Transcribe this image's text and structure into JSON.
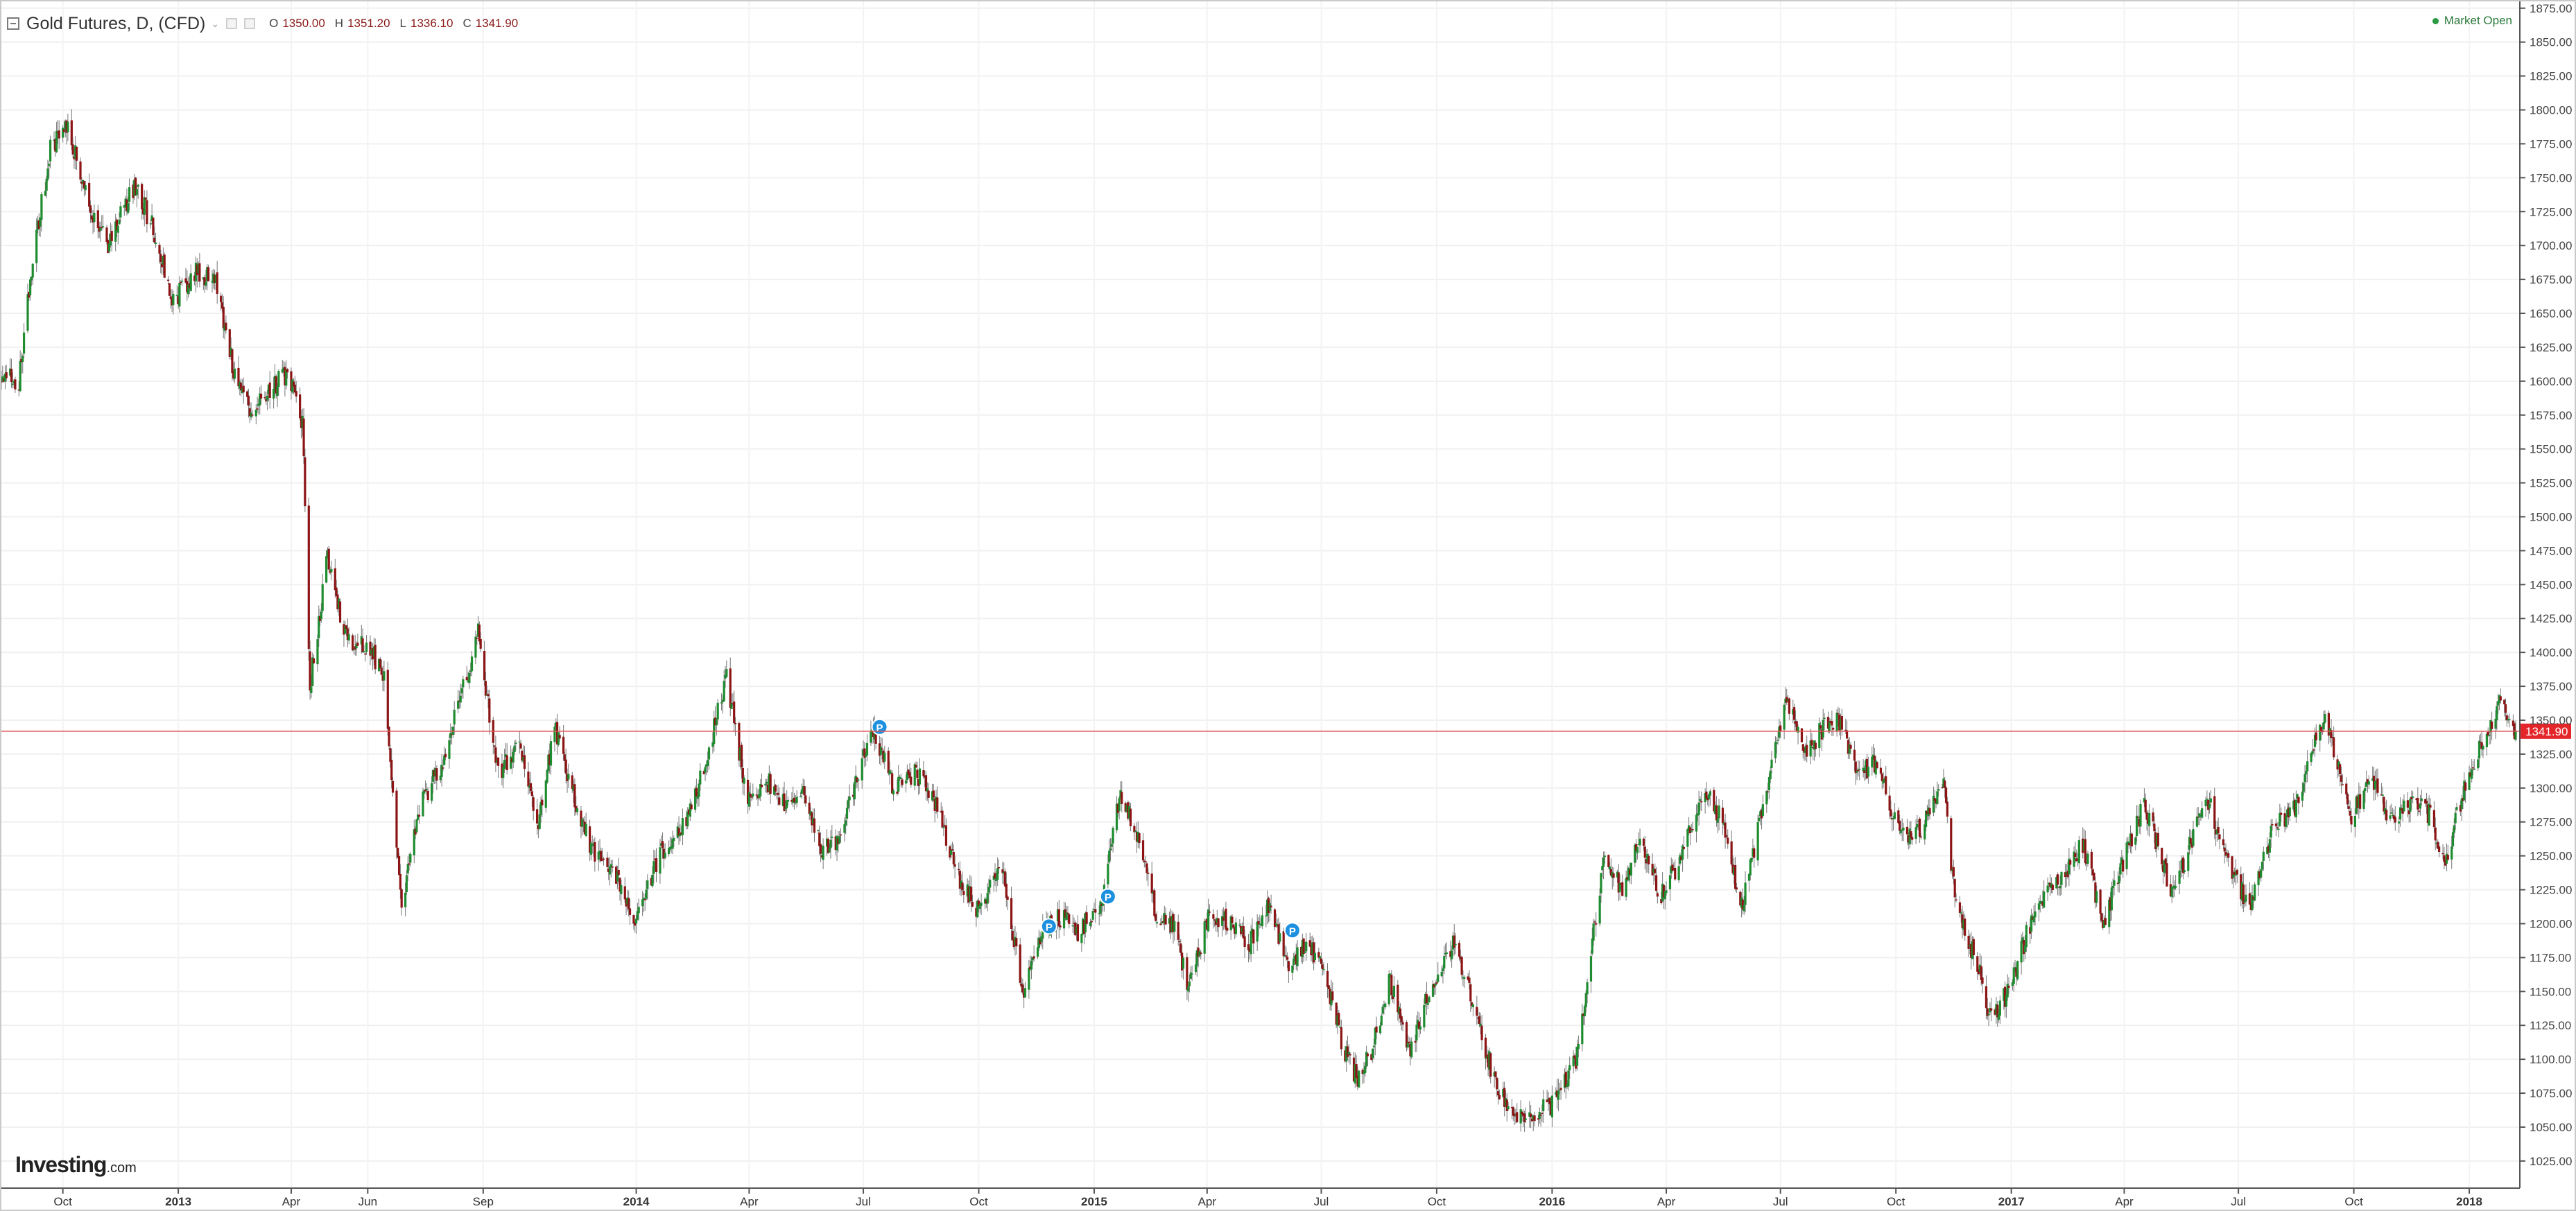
{
  "header": {
    "symbol": "Gold Futures, D, (CFD)",
    "caret": "⌄",
    "ohlc": {
      "o_label": "O",
      "o_value": "1350.00",
      "h_label": "H",
      "h_value": "1351.20",
      "l_label": "L",
      "l_value": "1336.10",
      "c_label": "C",
      "c_value": "1341.90"
    }
  },
  "status": {
    "text": "Market Open",
    "color": "#2a9a44"
  },
  "logo": {
    "name": "Investing",
    "suffix": ".com"
  },
  "colors": {
    "up": "#1e8c2f",
    "down": "#8c1414",
    "price_line": "#e05555",
    "price_label_bg": "#e4262a"
  },
  "chart_data": {
    "type": "candlestick",
    "title": "Gold Futures, D, (CFD)",
    "y_axis": {
      "range": [
        1005,
        1880
      ],
      "ticks": [
        "1025.00",
        "1050.00",
        "1075.00",
        "1100.00",
        "1125.00",
        "1150.00",
        "1175.00",
        "1200.00",
        "1225.00",
        "1250.00",
        "1275.00",
        "1300.00",
        "1325.00",
        "1350.00",
        "1375.00",
        "1400.00",
        "1425.00",
        "1450.00",
        "1475.00",
        "1500.00",
        "1525.00",
        "1550.00",
        "1575.00",
        "1600.00",
        "1625.00",
        "1650.00",
        "1675.00",
        "1700.00",
        "1725.00",
        "1750.00",
        "1775.00",
        "1800.00",
        "1825.00",
        "1850.00",
        "1875.00"
      ]
    },
    "x_axis": {
      "range": [
        "2012-08-13",
        "2018-02-07"
      ],
      "labels": [
        {
          "text": "Oct",
          "date": "2012-10-01",
          "bold": false
        },
        {
          "text": "2013",
          "date": "2013-01-01",
          "bold": true
        },
        {
          "text": "Apr",
          "date": "2013-04-01",
          "bold": false
        },
        {
          "text": "Jun",
          "date": "2013-06-01",
          "bold": false
        },
        {
          "text": "Sep",
          "date": "2013-09-01",
          "bold": false
        },
        {
          "text": "2014",
          "date": "2014-01-01",
          "bold": true
        },
        {
          "text": "Apr",
          "date": "2014-04-01",
          "bold": false
        },
        {
          "text": "Jul",
          "date": "2014-07-01",
          "bold": false
        },
        {
          "text": "Oct",
          "date": "2014-10-01",
          "bold": false
        },
        {
          "text": "2015",
          "date": "2015-01-01",
          "bold": true
        },
        {
          "text": "Apr",
          "date": "2015-04-01",
          "bold": false
        },
        {
          "text": "Jul",
          "date": "2015-07-01",
          "bold": false
        },
        {
          "text": "Oct",
          "date": "2015-10-01",
          "bold": false
        },
        {
          "text": "2016",
          "date": "2016-01-01",
          "bold": true
        },
        {
          "text": "Apr",
          "date": "2016-04-01",
          "bold": false
        },
        {
          "text": "Jul",
          "date": "2016-07-01",
          "bold": false
        },
        {
          "text": "Oct",
          "date": "2016-10-01",
          "bold": false
        },
        {
          "text": "2017",
          "date": "2017-01-01",
          "bold": true
        },
        {
          "text": "Apr",
          "date": "2017-04-01",
          "bold": false
        },
        {
          "text": "Jul",
          "date": "2017-07-01",
          "bold": false
        },
        {
          "text": "Oct",
          "date": "2017-10-01",
          "bold": false
        },
        {
          "text": "2018",
          "date": "2018-01-01",
          "bold": true
        }
      ]
    },
    "grid": true,
    "last_price": {
      "value": 1341.9,
      "label": "1341.90"
    },
    "path": [
      {
        "date": "2012-08-13",
        "price": 1605
      },
      {
        "date": "2012-08-27",
        "price": 1600
      },
      {
        "date": "2012-09-07",
        "price": 1690
      },
      {
        "date": "2012-09-21",
        "price": 1770
      },
      {
        "date": "2012-10-04",
        "price": 1790
      },
      {
        "date": "2012-10-22",
        "price": 1730
      },
      {
        "date": "2012-11-05",
        "price": 1700
      },
      {
        "date": "2012-11-28",
        "price": 1745
      },
      {
        "date": "2012-12-12",
        "price": 1712
      },
      {
        "date": "2012-12-28",
        "price": 1660
      },
      {
        "date": "2013-01-15",
        "price": 1680
      },
      {
        "date": "2013-01-30",
        "price": 1675
      },
      {
        "date": "2013-02-15",
        "price": 1605
      },
      {
        "date": "2013-02-28",
        "price": 1575
      },
      {
        "date": "2013-03-15",
        "price": 1595
      },
      {
        "date": "2013-03-29",
        "price": 1605
      },
      {
        "date": "2013-04-10",
        "price": 1570
      },
      {
        "date": "2013-04-16",
        "price": 1375
      },
      {
        "date": "2013-04-30",
        "price": 1470
      },
      {
        "date": "2013-05-15",
        "price": 1410
      },
      {
        "date": "2013-05-31",
        "price": 1405
      },
      {
        "date": "2013-06-14",
        "price": 1385
      },
      {
        "date": "2013-06-28",
        "price": 1215
      },
      {
        "date": "2013-07-12",
        "price": 1285
      },
      {
        "date": "2013-07-31",
        "price": 1320
      },
      {
        "date": "2013-08-15",
        "price": 1370
      },
      {
        "date": "2013-08-28",
        "price": 1415
      },
      {
        "date": "2013-09-13",
        "price": 1310
      },
      {
        "date": "2013-09-30",
        "price": 1330
      },
      {
        "date": "2013-10-15",
        "price": 1275
      },
      {
        "date": "2013-10-28",
        "price": 1345
      },
      {
        "date": "2013-11-15",
        "price": 1285
      },
      {
        "date": "2013-11-29",
        "price": 1250
      },
      {
        "date": "2013-12-16",
        "price": 1235
      },
      {
        "date": "2013-12-31",
        "price": 1200
      },
      {
        "date": "2014-01-20",
        "price": 1252
      },
      {
        "date": "2014-02-10",
        "price": 1275
      },
      {
        "date": "2014-02-28",
        "price": 1328
      },
      {
        "date": "2014-03-14",
        "price": 1382
      },
      {
        "date": "2014-03-31",
        "price": 1290
      },
      {
        "date": "2014-04-15",
        "price": 1305
      },
      {
        "date": "2014-04-30",
        "price": 1290
      },
      {
        "date": "2014-05-15",
        "price": 1295
      },
      {
        "date": "2014-05-30",
        "price": 1252
      },
      {
        "date": "2014-06-12",
        "price": 1265
      },
      {
        "date": "2014-06-30",
        "price": 1322
      },
      {
        "date": "2014-07-10",
        "price": 1340
      },
      {
        "date": "2014-07-25",
        "price": 1300
      },
      {
        "date": "2014-08-12",
        "price": 1312
      },
      {
        "date": "2014-08-29",
        "price": 1285
      },
      {
        "date": "2014-09-15",
        "price": 1235
      },
      {
        "date": "2014-09-30",
        "price": 1210
      },
      {
        "date": "2014-10-20",
        "price": 1245
      },
      {
        "date": "2014-11-05",
        "price": 1145
      },
      {
        "date": "2014-11-21",
        "price": 1195
      },
      {
        "date": "2014-12-05",
        "price": 1205
      },
      {
        "date": "2014-12-19",
        "price": 1195
      },
      {
        "date": "2015-01-07",
        "price": 1215
      },
      {
        "date": "2015-01-22",
        "price": 1298
      },
      {
        "date": "2015-02-05",
        "price": 1265
      },
      {
        "date": "2015-02-20",
        "price": 1205
      },
      {
        "date": "2015-03-05",
        "price": 1198
      },
      {
        "date": "2015-03-17",
        "price": 1152
      },
      {
        "date": "2015-04-02",
        "price": 1205
      },
      {
        "date": "2015-04-20",
        "price": 1200
      },
      {
        "date": "2015-05-05",
        "price": 1185
      },
      {
        "date": "2015-05-20",
        "price": 1212
      },
      {
        "date": "2015-06-05",
        "price": 1170
      },
      {
        "date": "2015-06-19",
        "price": 1185
      },
      {
        "date": "2015-07-01",
        "price": 1170
      },
      {
        "date": "2015-07-20",
        "price": 1105
      },
      {
        "date": "2015-07-30",
        "price": 1085
      },
      {
        "date": "2015-08-10",
        "price": 1105
      },
      {
        "date": "2015-08-24",
        "price": 1160
      },
      {
        "date": "2015-09-10",
        "price": 1105
      },
      {
        "date": "2015-09-25",
        "price": 1150
      },
      {
        "date": "2015-10-14",
        "price": 1185
      },
      {
        "date": "2015-10-30",
        "price": 1142
      },
      {
        "date": "2015-11-16",
        "price": 1085
      },
      {
        "date": "2015-12-03",
        "price": 1055
      },
      {
        "date": "2015-12-17",
        "price": 1060
      },
      {
        "date": "2015-12-31",
        "price": 1065
      },
      {
        "date": "2016-01-20",
        "price": 1100
      },
      {
        "date": "2016-02-11",
        "price": 1245
      },
      {
        "date": "2016-02-26",
        "price": 1225
      },
      {
        "date": "2016-03-11",
        "price": 1265
      },
      {
        "date": "2016-03-28",
        "price": 1220
      },
      {
        "date": "2016-04-13",
        "price": 1250
      },
      {
        "date": "2016-05-02",
        "price": 1300
      },
      {
        "date": "2016-05-16",
        "price": 1275
      },
      {
        "date": "2016-05-31",
        "price": 1212
      },
      {
        "date": "2016-06-16",
        "price": 1280
      },
      {
        "date": "2016-07-06",
        "price": 1365
      },
      {
        "date": "2016-07-20",
        "price": 1325
      },
      {
        "date": "2016-08-05",
        "price": 1345
      },
      {
        "date": "2016-08-18",
        "price": 1350
      },
      {
        "date": "2016-09-01",
        "price": 1310
      },
      {
        "date": "2016-09-15",
        "price": 1320
      },
      {
        "date": "2016-10-04",
        "price": 1265
      },
      {
        "date": "2016-10-20",
        "price": 1268
      },
      {
        "date": "2016-11-08",
        "price": 1302
      },
      {
        "date": "2016-11-18",
        "price": 1210
      },
      {
        "date": "2016-12-05",
        "price": 1170
      },
      {
        "date": "2016-12-15",
        "price": 1130
      },
      {
        "date": "2016-12-30",
        "price": 1150
      },
      {
        "date": "2017-01-20",
        "price": 1212
      },
      {
        "date": "2017-02-10",
        "price": 1235
      },
      {
        "date": "2017-02-27",
        "price": 1260
      },
      {
        "date": "2017-03-15",
        "price": 1200
      },
      {
        "date": "2017-04-04",
        "price": 1255
      },
      {
        "date": "2017-04-17",
        "price": 1290
      },
      {
        "date": "2017-05-09",
        "price": 1220
      },
      {
        "date": "2017-06-06",
        "price": 1295
      },
      {
        "date": "2017-06-20",
        "price": 1250
      },
      {
        "date": "2017-07-10",
        "price": 1212
      },
      {
        "date": "2017-07-28",
        "price": 1270
      },
      {
        "date": "2017-08-15",
        "price": 1285
      },
      {
        "date": "2017-09-08",
        "price": 1355
      },
      {
        "date": "2017-09-29",
        "price": 1280
      },
      {
        "date": "2017-10-16",
        "price": 1305
      },
      {
        "date": "2017-10-31",
        "price": 1275
      },
      {
        "date": "2017-11-17",
        "price": 1290
      },
      {
        "date": "2017-12-01",
        "price": 1280
      },
      {
        "date": "2017-12-12",
        "price": 1242
      },
      {
        "date": "2017-12-29",
        "price": 1305
      },
      {
        "date": "2018-01-12",
        "price": 1338
      },
      {
        "date": "2018-01-25",
        "price": 1362
      },
      {
        "date": "2018-02-07",
        "price": 1341.9
      }
    ],
    "markers": [
      {
        "label": "P",
        "date": "2014-07-14",
        "price": 1345
      },
      {
        "label": "P",
        "date": "2014-11-26",
        "price": 1198
      },
      {
        "label": "P",
        "date": "2015-01-12",
        "price": 1220
      },
      {
        "label": "P",
        "date": "2015-06-08",
        "price": 1195
      }
    ]
  }
}
